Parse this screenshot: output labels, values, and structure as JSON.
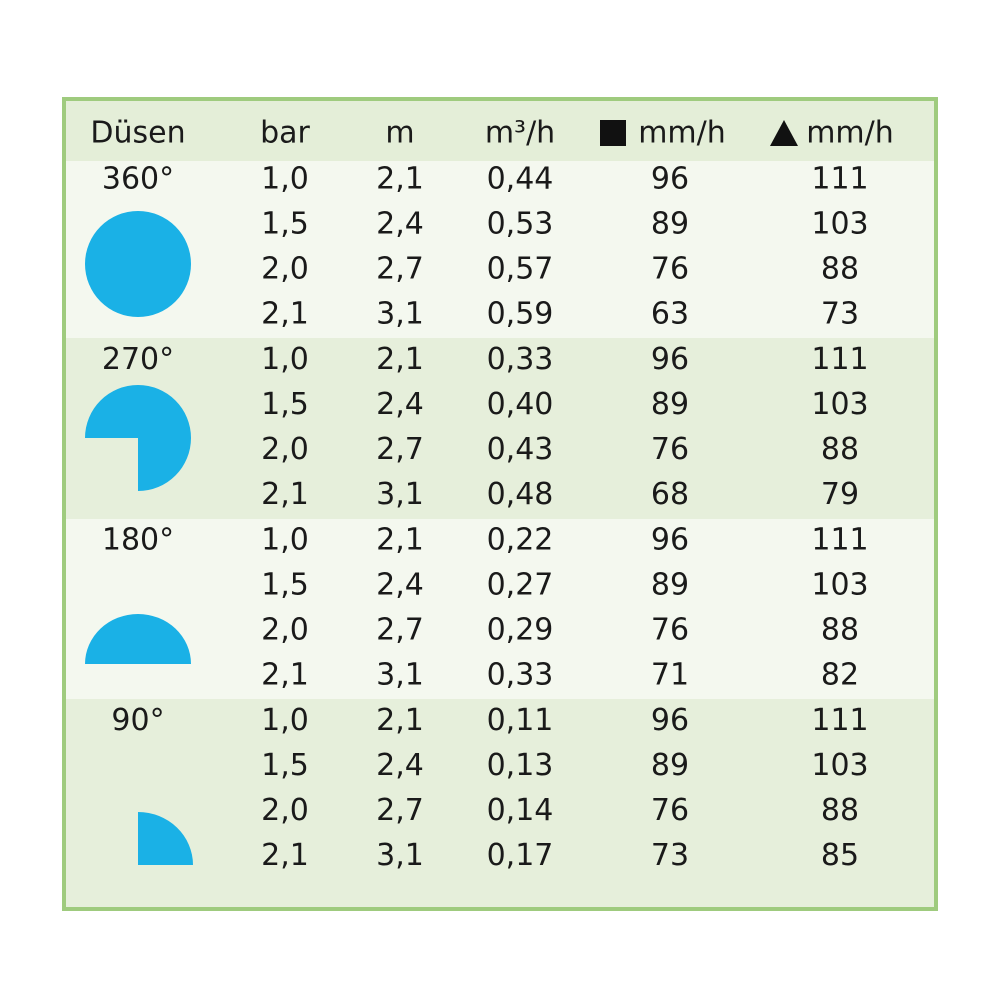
{
  "table": {
    "header": [
      "Düsen",
      "bar",
      "m",
      "m³/h",
      "mm/h",
      "mm/h"
    ],
    "groups": [
      {
        "label": "360°",
        "rows": [
          [
            "1,0",
            "2,1",
            "0,44",
            "96",
            "111"
          ],
          [
            "1,5",
            "2,4",
            "0,53",
            "89",
            "103"
          ],
          [
            "2,0",
            "2,7",
            "0,57",
            "76",
            "88"
          ],
          [
            "2,1",
            "3,1",
            "0,59",
            "63",
            "73"
          ]
        ]
      },
      {
        "label": "270°",
        "rows": [
          [
            "1,0",
            "2,1",
            "0,33",
            "96",
            "111"
          ],
          [
            "1,5",
            "2,4",
            "0,40",
            "89",
            "103"
          ],
          [
            "2,0",
            "2,7",
            "0,43",
            "76",
            "88"
          ],
          [
            "2,1",
            "3,1",
            "0,48",
            "68",
            "79"
          ]
        ]
      },
      {
        "label": "180°",
        "rows": [
          [
            "1,0",
            "2,1",
            "0,22",
            "96",
            "111"
          ],
          [
            "1,5",
            "2,4",
            "0,27",
            "89",
            "103"
          ],
          [
            "2,0",
            "2,7",
            "0,29",
            "76",
            "88"
          ],
          [
            "2,1",
            "3,1",
            "0,33",
            "71",
            "82"
          ]
        ]
      },
      {
        "label": "90°",
        "rows": [
          [
            "1,0",
            "2,1",
            "0,11",
            "96",
            "111"
          ],
          [
            "1,5",
            "2,4",
            "0,13",
            "89",
            "103"
          ],
          [
            "2,0",
            "2,7",
            "0,14",
            "76",
            "88"
          ],
          [
            "2,1",
            "3,1",
            "0,17",
            "73",
            "85"
          ]
        ]
      }
    ]
  }
}
